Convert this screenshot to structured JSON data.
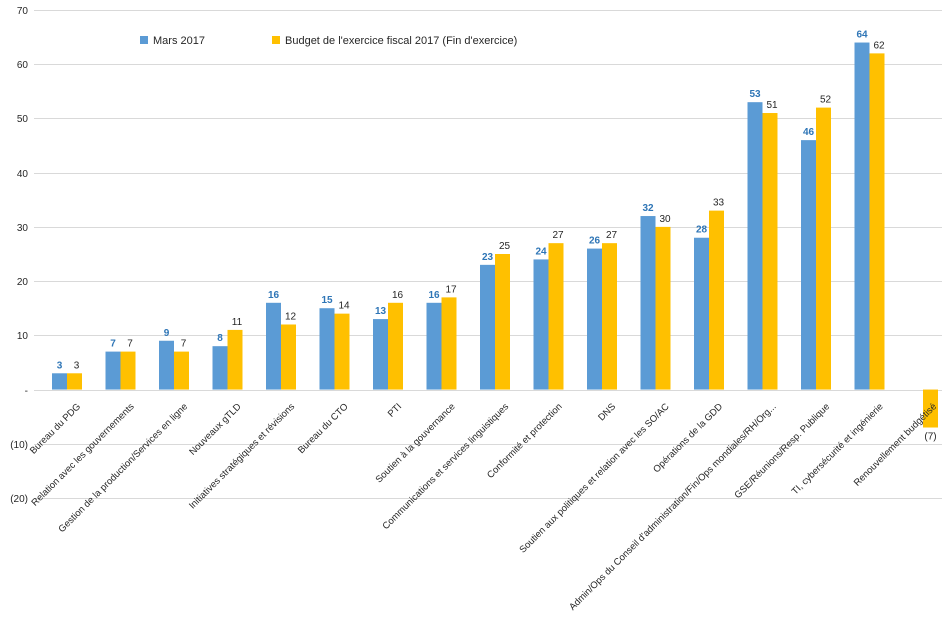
{
  "chart_data": {
    "type": "bar",
    "title": "",
    "xlabel": "",
    "ylabel": "",
    "ylim": [
      -20,
      70
    ],
    "yticks": [
      -20,
      -10,
      0,
      10,
      20,
      30,
      40,
      50,
      60,
      70
    ],
    "ytick_labels": [
      "(20)",
      "(10)",
      "-",
      "10",
      "20",
      "30",
      "40",
      "50",
      "60",
      "70"
    ],
    "grid": true,
    "legend_position": "top-left",
    "categories": [
      "Bureau du PDG",
      "Relation avec les gouvernements",
      "Gestion de la production/Services en ligne",
      "Nouveaux gTLD",
      "Initiatives stratégiques et révisions",
      "Bureau du CTO",
      "PTI",
      "Soutien à la gouvernance",
      "Communications et services linguistiques",
      "Conformité et protection",
      "DNS",
      "Soutien aux politiques et relation avec les SO/AC",
      "Opérations de la GDD",
      "Admin/Ops du Conseil d'administration/Fin/Ops mondiales/RH/Org...",
      "GSE/Réunions/Resp. Publique",
      "TI, cybersécurité et ingénierie",
      "Renouvellement budgétisé"
    ],
    "series": [
      {
        "name": "Mars 2017",
        "color": "#5b9bd5",
        "label_color": "#2e75b6",
        "values": [
          3,
          7,
          9,
          8,
          16,
          15,
          13,
          16,
          23,
          24,
          26,
          32,
          28,
          53,
          46,
          64,
          null
        ],
        "labels": [
          "3",
          "7",
          "9",
          "8",
          "16",
          "15",
          "13",
          "16",
          "23",
          "24",
          "26",
          "32",
          "28",
          "53",
          "46",
          "64",
          ""
        ]
      },
      {
        "name": "Budget de l'exercice fiscal 2017 (Fin d'exercice)",
        "color": "#ffc000",
        "label_color": "#262626",
        "values": [
          3,
          7,
          7,
          11,
          12,
          14,
          16,
          17,
          25,
          27,
          27,
          30,
          33,
          51,
          52,
          62,
          -7
        ],
        "labels": [
          "3",
          "7",
          "7",
          "11",
          "12",
          "14",
          "16",
          "17",
          "25",
          "27",
          "27",
          "30",
          "33",
          "51",
          "52",
          "62",
          "(7)"
        ]
      }
    ]
  }
}
